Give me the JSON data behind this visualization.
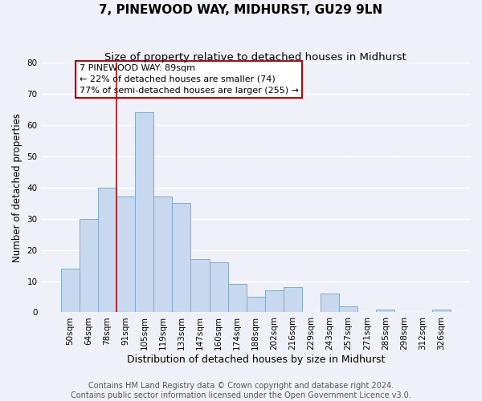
{
  "title": "7, PINEWOOD WAY, MIDHURST, GU29 9LN",
  "subtitle": "Size of property relative to detached houses in Midhurst",
  "xlabel": "Distribution of detached houses by size in Midhurst",
  "ylabel": "Number of detached properties",
  "bar_color": "#c8d8ee",
  "bar_edge_color": "#7aadd4",
  "background_color": "#eef2f8",
  "grid_color": "#ffffff",
  "categories": [
    "50sqm",
    "64sqm",
    "78sqm",
    "91sqm",
    "105sqm",
    "119sqm",
    "133sqm",
    "147sqm",
    "160sqm",
    "174sqm",
    "188sqm",
    "202sqm",
    "216sqm",
    "229sqm",
    "243sqm",
    "257sqm",
    "271sqm",
    "285sqm",
    "298sqm",
    "312sqm",
    "326sqm"
  ],
  "values": [
    14,
    30,
    40,
    37,
    64,
    37,
    35,
    17,
    16,
    9,
    5,
    7,
    8,
    0,
    6,
    2,
    0,
    1,
    0,
    0,
    1
  ],
  "ylim": [
    0,
    80
  ],
  "yticks": [
    0,
    10,
    20,
    30,
    40,
    50,
    60,
    70,
    80
  ],
  "vline_x_idx": 3,
  "vline_color": "#cc0000",
  "annotation_line1": "7 PINEWOOD WAY: 89sqm",
  "annotation_line2": "← 22% of detached houses are smaller (74)",
  "annotation_line3": "77% of semi-detached houses are larger (255) →",
  "annotation_box_color": "#ffffff",
  "annotation_box_edge": "#cc0000",
  "footer_line1": "Contains HM Land Registry data © Crown copyright and database right 2024.",
  "footer_line2": "Contains public sector information licensed under the Open Government Licence v3.0.",
  "title_fontsize": 11,
  "subtitle_fontsize": 9.5,
  "xlabel_fontsize": 9,
  "ylabel_fontsize": 8.5,
  "tick_fontsize": 7.5,
  "annot_fontsize": 8,
  "footer_fontsize": 7
}
